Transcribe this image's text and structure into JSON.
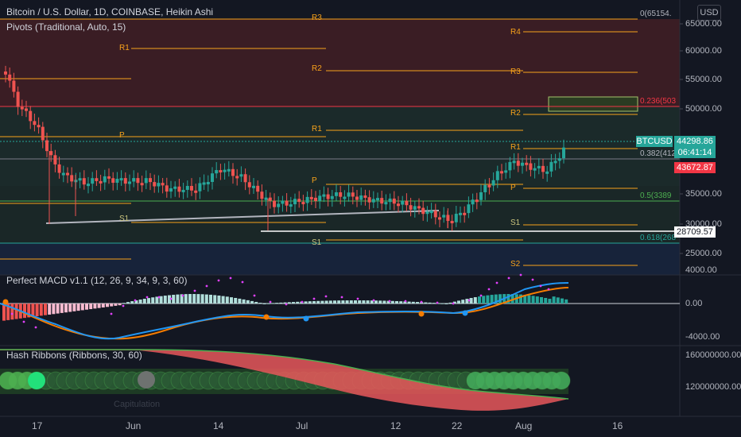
{
  "header": {
    "title": "Bitcoin / U.S. Dollar, 1D, COINBASE, Heikin Ashi",
    "indicator": "Pivots (Traditional, Auto, 15)",
    "currency_button": "USD"
  },
  "macd": {
    "title": "Perfect MACD v1.1 (12, 26, 9, 34, 9, 3, 60)"
  },
  "hash": {
    "title": "Hash Ribbons (Ribbons, 30, 60)",
    "faint_label": "Capitulation"
  },
  "price_axis": [
    "65000.00",
    "60000.00",
    "55000.00",
    "50000.00",
    "35000.00",
    "30000.00",
    "25000.00"
  ],
  "macd_axis": [
    "4000.00",
    "0.00",
    "-4000.00"
  ],
  "hash_axis": [
    "160000000.00",
    "120000000.00"
  ],
  "time_axis": [
    "17",
    "Jun",
    "14",
    "Jul",
    "12",
    "22",
    "Aug",
    "16"
  ],
  "pivot_labels": [
    {
      "text": "R3"
    },
    {
      "text": "R1"
    },
    {
      "text": "R4"
    },
    {
      "text": "R2"
    },
    {
      "text": "R3"
    },
    {
      "text": "R2"
    },
    {
      "text": "R1"
    },
    {
      "text": "R1"
    },
    {
      "text": "P"
    },
    {
      "text": "P"
    },
    {
      "text": "P"
    },
    {
      "text": "S1"
    },
    {
      "text": "S1"
    },
    {
      "text": "S1"
    },
    {
      "text": "S2"
    }
  ],
  "fib_labels": [
    {
      "text": "0(65154.",
      "color": "#b2b5be"
    },
    {
      "text": "0.236(503",
      "color": "#f23645"
    },
    {
      "text": "0.382(412",
      "color": "#b2b5be"
    },
    {
      "text": "0.5(3389",
      "color": "#4caf50"
    },
    {
      "text": "0.618(268",
      "color": "#26a69a"
    }
  ],
  "tags": {
    "symbol": "BTCUSD",
    "last_price": "44298.86",
    "countdown": "06:41:14",
    "red_price": "43672.87",
    "white_price": "28709.57"
  },
  "colors": {
    "bull": "#26a69a",
    "bear": "#ef5350",
    "pivot": "#f7a21b",
    "bg": "#131722"
  }
}
